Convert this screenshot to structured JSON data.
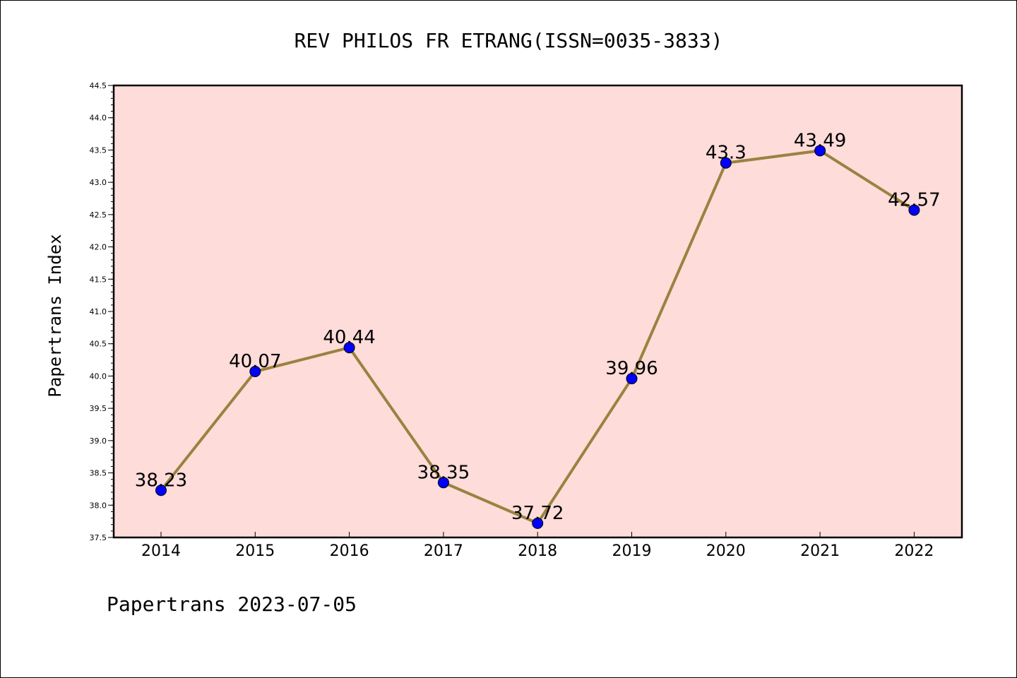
{
  "chart_data": {
    "type": "line",
    "title": "REV PHILOS FR ETRANG(ISSN=0035-3833)",
    "xlabel": "",
    "ylabel": "Papertrans Index",
    "categories": [
      "2014",
      "2015",
      "2016",
      "2017",
      "2018",
      "2019",
      "2020",
      "2021",
      "2022"
    ],
    "series": [
      {
        "values": [
          38.23,
          40.07,
          40.44,
          38.35,
          37.72,
          39.96,
          43.3,
          43.49,
          42.57
        ]
      }
    ],
    "data_labels": [
      "38.23",
      "40.07",
      "40.44",
      "38.35",
      "37.72",
      "39.96",
      "43.3",
      "43.49",
      "42.57"
    ],
    "ylim": [
      37.5,
      44.5
    ],
    "yticks": [
      "37.5",
      "38.0",
      "38.5",
      "39.0",
      "39.5",
      "40.0",
      "40.5",
      "41.0",
      "41.5",
      "42.0",
      "42.5",
      "43.0",
      "43.5",
      "44.0",
      "44.5"
    ],
    "grid": false,
    "colors": {
      "plot_background": "#fddcd9",
      "line": "#9a8240",
      "marker": "#0000ff"
    }
  },
  "footer": "Papertrans 2023-07-05"
}
